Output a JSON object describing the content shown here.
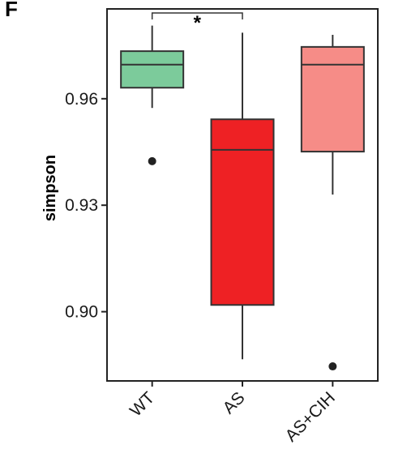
{
  "panel_label": "F",
  "chart_data": {
    "type": "boxplot",
    "ylabel": "simpson",
    "xlabel": "",
    "ylim": [
      0.8805,
      0.9853
    ],
    "yticks": [
      0.9,
      0.93,
      0.96
    ],
    "ytick_labels": [
      "0.90",
      "0.93",
      "0.96"
    ],
    "grid": false,
    "legend": "none",
    "categories": [
      "WT",
      "AS",
      "AS+CIH"
    ],
    "boxes": [
      {
        "name": "WT",
        "whisker_low": 0.9574,
        "q1": 0.9631,
        "median": 0.9696,
        "q3": 0.9734,
        "whisker_high": 0.9806,
        "outliers": [
          0.9424
        ],
        "color": "#7ccb9b"
      },
      {
        "name": "AS",
        "whisker_low": 0.8866,
        "q1": 0.9019,
        "median": 0.9456,
        "q3": 0.9542,
        "whisker_high": 0.9786,
        "outliers": [],
        "color": "#ee2124"
      },
      {
        "name": "AS+CIH",
        "whisker_low": 0.933,
        "q1": 0.9451,
        "median": 0.9696,
        "q3": 0.9746,
        "whisker_high": 0.978,
        "outliers": [
          0.8846
        ],
        "color": "#f68c87"
      }
    ],
    "significance": [
      {
        "from": "WT",
        "to": "AS",
        "label": "*"
      }
    ]
  }
}
